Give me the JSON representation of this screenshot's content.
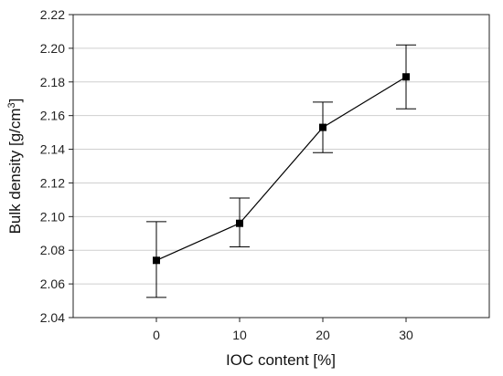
{
  "chart_data": {
    "type": "line",
    "title": "",
    "xlabel": "IOC content [%]",
    "ylabel": "Bulk density [g/cm",
    "ylabel_superscript": "3",
    "ylabel_suffix": "]",
    "x_ticks": [
      "0",
      "10",
      "20",
      "30"
    ],
    "y_ticks": [
      "2.04",
      "2.06",
      "2.08",
      "2.10",
      "2.12",
      "2.14",
      "2.16",
      "2.18",
      "2.20",
      "2.22"
    ],
    "xlim": [
      -10,
      40
    ],
    "ylim": [
      2.04,
      2.22
    ],
    "grid": "horizontal",
    "legend": "none",
    "series": [
      {
        "x": [
          0,
          10,
          20,
          30
        ],
        "y": [
          2.074,
          2.096,
          2.153,
          2.183
        ],
        "error_low": [
          2.052,
          2.082,
          2.138,
          2.164
        ],
        "error_high": [
          2.097,
          2.111,
          2.168,
          2.202
        ],
        "color": "#000000",
        "marker": "square"
      }
    ]
  }
}
